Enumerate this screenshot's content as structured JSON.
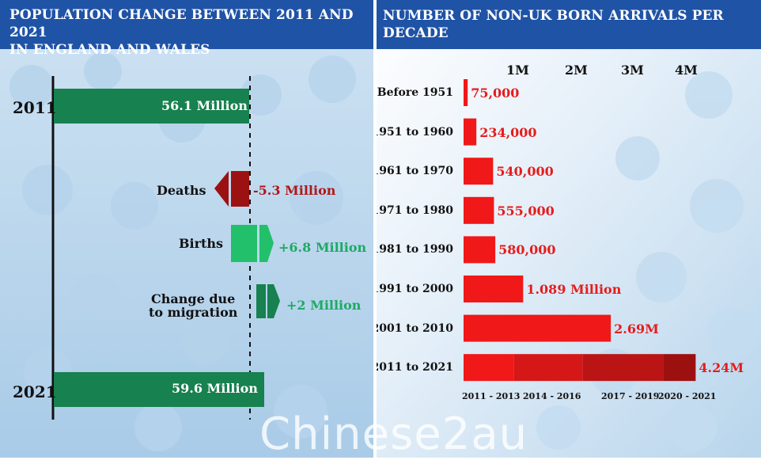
{
  "left_panel": {
    "title_line1": "POPULATION CHANGE BETWEEN 2011 AND 2021",
    "title_line2": "IN ENGLAND AND WALES",
    "year_start": "2011",
    "year_end": "2021",
    "start_bar_label": "56.1 Million",
    "end_bar_label": "59.6 Million",
    "deaths_label": "Deaths",
    "deaths_value": "-5.3 Million",
    "births_label": "Births",
    "births_value": "+6.8 Million",
    "migration_label_line1": "Change due",
    "migration_label_line2": "to migration",
    "migration_value": "+2 Million"
  },
  "right_panel": {
    "title": "NUMBER OF NON-UK BORN ARRIVALS PER DECADE",
    "ticks": [
      "1M",
      "2M",
      "3M",
      "4M"
    ],
    "segment_labels": [
      "2011 - 2013",
      "2014 - 2016",
      "2017 - 2019",
      "2020 - 2021"
    ]
  },
  "watermark": "Chinese2au",
  "colors": {
    "header_blue": "#1f53a6",
    "dark_green": "#17814f",
    "light_green": "#22c06a",
    "dark_red": "#9c1212",
    "bright_red": "#f01818"
  },
  "chart_data": [
    {
      "type": "bar",
      "orientation": "horizontal",
      "title": "POPULATION CHANGE BETWEEN 2011 AND 2021 IN ENGLAND AND WALES",
      "categories": [
        "2011",
        "Deaths",
        "Births",
        "Change due to migration",
        "2021"
      ],
      "values": [
        56.1,
        -5.3,
        6.8,
        2,
        59.6
      ],
      "value_labels": [
        "56.1 Million",
        "-5.3 Million",
        "+6.8 Million",
        "+2 Million",
        "59.6 Million"
      ]
    },
    {
      "type": "bar",
      "orientation": "horizontal",
      "title": "NUMBER OF NON-UK BORN ARRIVALS PER DECADE",
      "categories": [
        "Before 1951",
        "1951 to 1960",
        "1961 to 1970",
        "1971 to 1980",
        "1981 to 1990",
        "1991 to 2000",
        "2001 to 2010",
        "2011 to 2021"
      ],
      "values": [
        75000,
        234000,
        540000,
        555000,
        580000,
        1089000,
        2690000,
        4240000
      ],
      "value_labels": [
        "75,000",
        "234,000",
        "540,000",
        "555,000",
        "580,000",
        "1.089 Million",
        "2.69M",
        "4.24M"
      ],
      "xticks": [
        "1M",
        "2M",
        "3M",
        "4M"
      ],
      "stacked_last_bar": {
        "segment_labels": [
          "2011 - 2013",
          "2014 - 2016",
          "2017 - 2019",
          "2020 - 2021"
        ],
        "segment_values": [
          920000,
          1260000,
          1470000,
          590000
        ]
      }
    }
  ]
}
